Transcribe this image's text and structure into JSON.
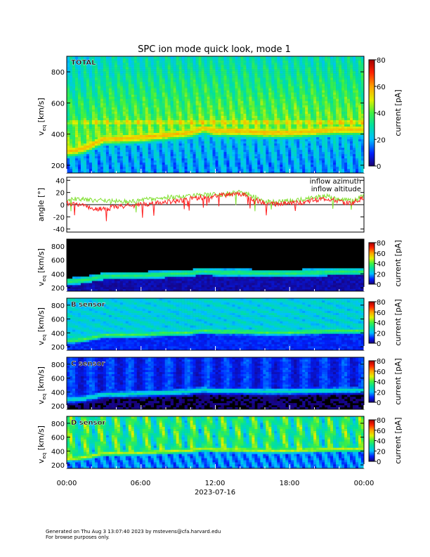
{
  "title": "SPC ion mode quick look, mode 1",
  "x_axis": {
    "date_label": "2023-07-16",
    "tick_labels": [
      "00:00",
      "06:00",
      "12:00",
      "18:00",
      "00:00"
    ],
    "range_hours": [
      0,
      24
    ]
  },
  "footer": {
    "line1": "Generated on Thu Aug  3 13:07:40 2023 by mstevens@cfa.harvard.edu",
    "line2": "For browse purposes only."
  },
  "colors": {
    "inflow_azimuth": "#ff2020",
    "inflow_altitude": "#80e030",
    "background_empty": "#000000"
  },
  "chart_data": [
    {
      "type": "heatmap",
      "panel": "total",
      "label": "TOTAL",
      "ylabel_main": "v",
      "ylabel_sub": "eq",
      "ylabel_unit": "[km/s]",
      "ylim": [
        150,
        900
      ],
      "yticks": [
        200,
        400,
        600,
        800
      ],
      "colorbar_label": "current [pA]",
      "colorbar_range": [
        0,
        80
      ],
      "colorbar_ticks": [
        0,
        20,
        40,
        60,
        80
      ],
      "core_velocity_trace": {
        "hours": [
          0,
          1,
          2,
          3,
          4,
          6,
          8,
          10,
          11,
          12,
          14,
          16,
          18,
          20,
          22,
          24
        ],
        "values": [
          290,
          300,
          330,
          370,
          370,
          380,
          395,
          410,
          440,
          420,
          420,
          410,
          410,
          420,
          430,
          430
        ]
      }
    },
    {
      "type": "line",
      "panel": "angle",
      "ylabel": "angle [°]",
      "ylim": [
        -45,
        45
      ],
      "yticks": [
        -40,
        -20,
        0,
        20,
        40
      ],
      "series": [
        {
          "name": "inflow azimuth",
          "hours": [
            0,
            1,
            2,
            3,
            4,
            5,
            6,
            7,
            8,
            9,
            10,
            11,
            12,
            13,
            14,
            15,
            16,
            17,
            18,
            19,
            20,
            21,
            22,
            23,
            24
          ],
          "values": [
            2,
            0,
            -5,
            -8,
            -3,
            -2,
            0,
            2,
            4,
            6,
            10,
            12,
            14,
            16,
            18,
            10,
            2,
            0,
            2,
            4,
            8,
            10,
            5,
            2,
            12
          ]
        },
        {
          "name": "inflow altitude",
          "hours": [
            0,
            1,
            2,
            3,
            4,
            5,
            6,
            7,
            8,
            9,
            10,
            11,
            12,
            13,
            14,
            15,
            16,
            17,
            18,
            19,
            20,
            21,
            22,
            23,
            24
          ],
          "values": [
            8,
            10,
            8,
            6,
            5,
            6,
            8,
            10,
            12,
            12,
            14,
            16,
            16,
            18,
            20,
            14,
            6,
            4,
            6,
            8,
            12,
            14,
            8,
            6,
            14
          ]
        }
      ]
    },
    {
      "type": "heatmap",
      "panel": "A sensor",
      "label": "",
      "ylabel_main": "v",
      "ylabel_sub": "eq",
      "ylabel_unit": "[km/s]",
      "ylim": [
        150,
        900
      ],
      "yticks": [
        200,
        400,
        600,
        800
      ],
      "colorbar_label": "current [pA]",
      "colorbar_range": [
        0,
        80
      ],
      "colorbar_ticks": [
        0,
        20,
        40,
        60,
        80
      ]
    },
    {
      "type": "heatmap",
      "panel": "B sensor",
      "label": "B sensor",
      "ylabel_main": "v",
      "ylabel_sub": "eq",
      "ylabel_unit": "[km/s]",
      "ylim": [
        150,
        900
      ],
      "yticks": [
        200,
        400,
        600,
        800
      ],
      "colorbar_label": "current [pA]",
      "colorbar_range": [
        0,
        80
      ],
      "colorbar_ticks": [
        0,
        20,
        40,
        60,
        80
      ]
    },
    {
      "type": "heatmap",
      "panel": "C sensor",
      "label": "C sensor",
      "ylabel_main": "v",
      "ylabel_sub": "eq",
      "ylabel_unit": "[km/s]",
      "ylim": [
        150,
        900
      ],
      "yticks": [
        200,
        400,
        600,
        800
      ],
      "colorbar_label": "current [pA]",
      "colorbar_range": [
        0,
        80
      ],
      "colorbar_ticks": [
        0,
        20,
        40,
        60,
        80
      ]
    },
    {
      "type": "heatmap",
      "panel": "D sensor",
      "label": "D sensor",
      "ylabel_main": "v",
      "ylabel_sub": "eq",
      "ylabel_unit": "[km/s]",
      "ylim": [
        150,
        900
      ],
      "yticks": [
        200,
        400,
        600,
        800
      ],
      "colorbar_label": "current [pA]",
      "colorbar_range": [
        0,
        80
      ],
      "colorbar_ticks": [
        0,
        20,
        40,
        60,
        80
      ]
    }
  ]
}
